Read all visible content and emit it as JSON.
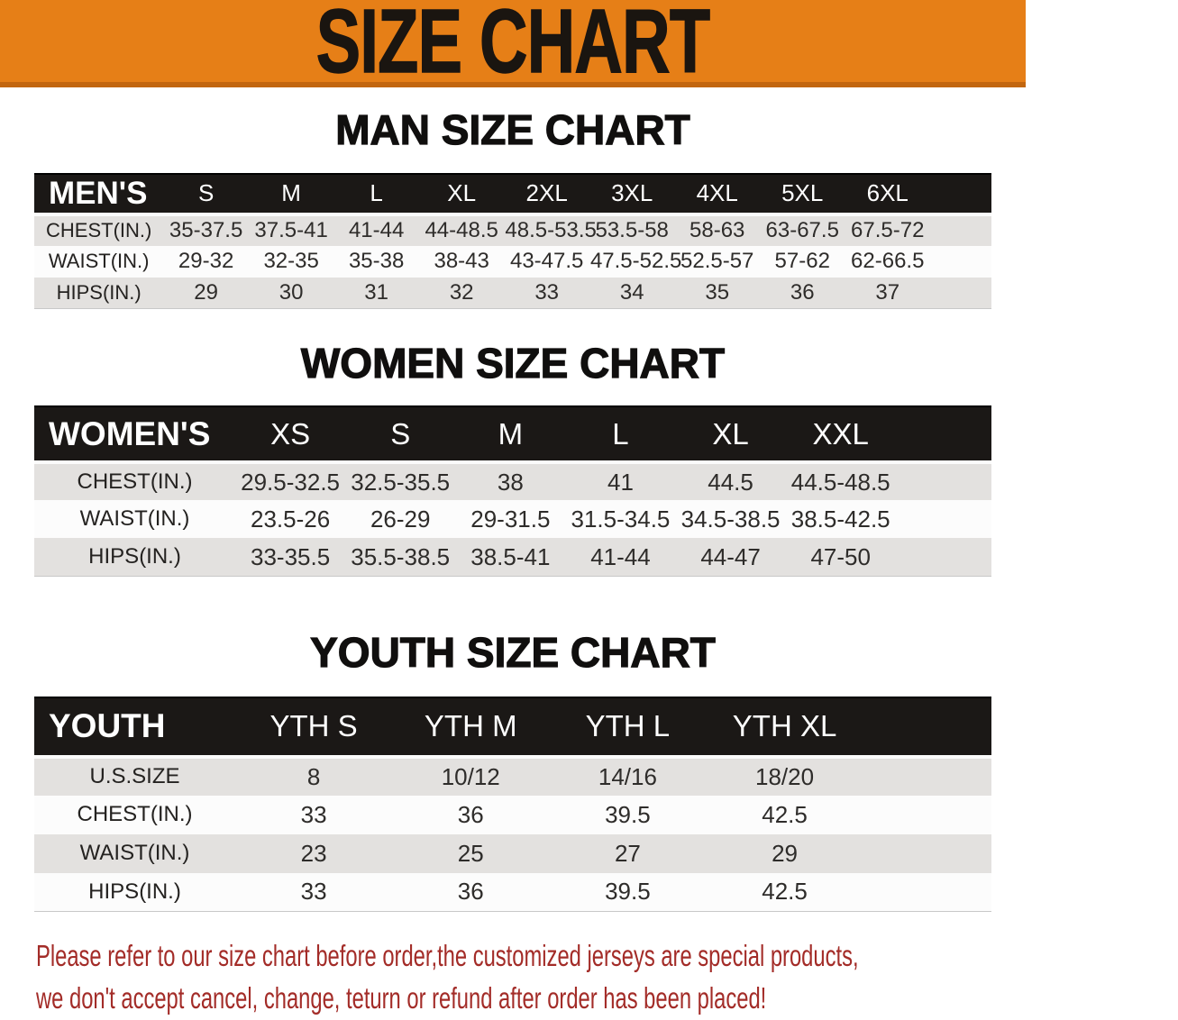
{
  "banner": {
    "title": "SIZE CHART"
  },
  "sections": [
    {
      "heading": "MAN SIZE CHART",
      "table": {
        "label": "MEN'S",
        "columns": [
          "S",
          "M",
          "L",
          "XL",
          "2XL",
          "3XL",
          "4XL",
          "5XL",
          "6XL"
        ],
        "rows": [
          {
            "label": "CHEST(IN.)",
            "values": [
              "35-37.5",
              "37.5-41",
              "41-44",
              "44-48.5",
              "48.5-53.5",
              "53.5-58",
              "58-63",
              "63-67.5",
              "67.5-72"
            ]
          },
          {
            "label": "WAIST(IN.)",
            "values": [
              "29-32",
              "32-35",
              "35-38",
              "38-43",
              "43-47.5",
              "47.5-52.5",
              "52.5-57",
              "57-62",
              "62-66.5"
            ]
          },
          {
            "label": "HIPS(IN.)",
            "values": [
              "29",
              "30",
              "31",
              "32",
              "33",
              "34",
              "35",
              "36",
              "37"
            ]
          }
        ]
      }
    },
    {
      "heading": "WOMEN SIZE CHART",
      "table": {
        "label": "WOMEN'S",
        "columns": [
          "XS",
          "S",
          "M",
          "L",
          "XL",
          "XXL"
        ],
        "rows": [
          {
            "label": "CHEST(IN.)",
            "values": [
              "29.5-32.5",
              "32.5-35.5",
              "38",
              "41",
              "44.5",
              "44.5-48.5"
            ]
          },
          {
            "label": "WAIST(IN.)",
            "values": [
              "23.5-26",
              "26-29",
              "29-31.5",
              "31.5-34.5",
              "34.5-38.5",
              "38.5-42.5"
            ]
          },
          {
            "label": "HIPS(IN.)",
            "values": [
              "33-35.5",
              "35.5-38.5",
              "38.5-41",
              "41-44",
              "44-47",
              "47-50"
            ]
          }
        ]
      }
    },
    {
      "heading": "YOUTH SIZE CHART",
      "table": {
        "label": "YOUTH",
        "columns": [
          "YTH S",
          "YTH M",
          "YTH L",
          "YTH XL"
        ],
        "rows": [
          {
            "label": "U.S.SIZE",
            "values": [
              "8",
              "10/12",
              "14/16",
              "18/20"
            ]
          },
          {
            "label": "CHEST(IN.)",
            "values": [
              "33",
              "36",
              "39.5",
              "42.5"
            ]
          },
          {
            "label": "WAIST(IN.)",
            "values": [
              "23",
              "25",
              "27",
              "29"
            ]
          },
          {
            "label": "HIPS(IN.)",
            "values": [
              "33",
              "36",
              "39.5",
              "42.5"
            ]
          }
        ]
      }
    }
  ],
  "footer": {
    "line1": "Please refer to our size chart before order,the customized jerseys are special products,",
    "line2": "we don't accept cancel, change, teturn or refund after order has been placed!"
  },
  "colors": {
    "banner_background": "#E67F17",
    "banner_border": "#C2660F",
    "banner_text": "#1A1510",
    "table_header_background": "#1B1816",
    "table_header_text": "#FFFFFF",
    "row_shaded": "#E3E1DF",
    "row_plain": "#FCFCFC",
    "body_text": "#2E2C2A",
    "footer_text": "#A32C28"
  }
}
